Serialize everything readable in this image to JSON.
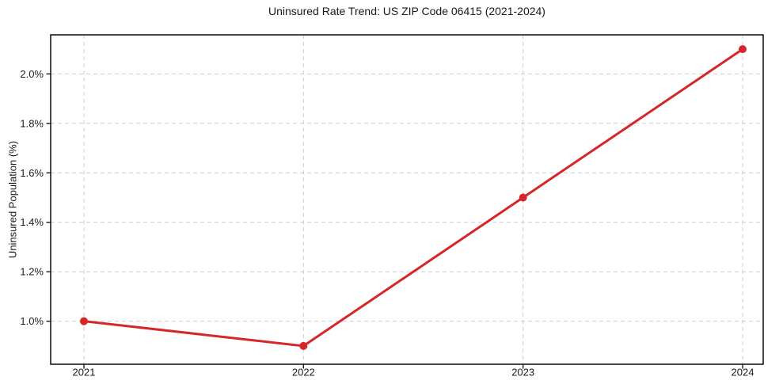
{
  "chart_data": {
    "type": "line",
    "title": "Uninsured Rate Trend: US ZIP Code 06415 (2021-2024)",
    "xlabel": "",
    "ylabel": "Uninsured Population (%)",
    "categories": [
      "2021",
      "2022",
      "2023",
      "2024"
    ],
    "series": [
      {
        "name": "Uninsured rate",
        "color": "#d62728",
        "values": [
          1.0,
          0.9,
          1.5,
          2.1
        ]
      }
    ],
    "yticks": {
      "values": [
        1.0,
        1.2,
        1.4,
        1.6,
        1.8,
        2.0
      ],
      "labels": [
        "1.0%",
        "1.2%",
        "1.4%",
        "1.6%",
        "1.8%",
        "2.0%"
      ]
    },
    "ylim": [
      0.826,
      2.158
    ],
    "grid": {
      "show": true,
      "style": "dashed",
      "axes": "both"
    },
    "legend": "none",
    "colors": {
      "line": "#d62728",
      "grid": "#cdcdcd",
      "axis": "#1a1a1a",
      "text": "#1a1a1a",
      "background": "#ffffff"
    }
  }
}
